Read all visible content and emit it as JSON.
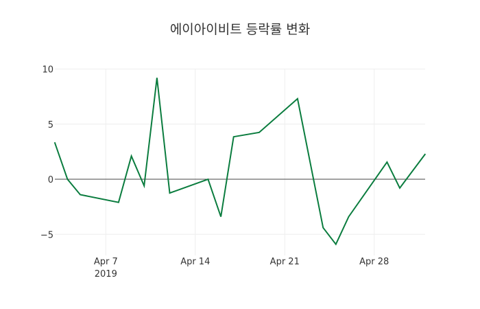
{
  "chart_data": {
    "type": "line",
    "title": "에이아이비트 등락률 변화",
    "xlabel": "",
    "ylabel": "",
    "x": [
      "2019-04-03",
      "2019-04-04",
      "2019-04-05",
      "2019-04-08",
      "2019-04-09",
      "2019-04-10",
      "2019-04-11",
      "2019-04-12",
      "2019-04-15",
      "2019-04-16",
      "2019-04-17",
      "2019-04-19",
      "2019-04-22",
      "2019-04-24",
      "2019-04-25",
      "2019-04-26",
      "2019-04-29",
      "2019-04-30",
      "2019-05-02"
    ],
    "series": [
      {
        "name": "등락률",
        "color": "#0a7c3e",
        "values": [
          3.35,
          0.0,
          -1.4,
          -2.1,
          2.1,
          -0.6,
          9.2,
          -1.25,
          0.0,
          -3.4,
          3.85,
          4.25,
          7.3,
          -4.4,
          -5.9,
          -3.4,
          1.55,
          -0.8,
          2.3
        ]
      }
    ],
    "ylim": [
      -7.0,
      10.3
    ],
    "yticks": [
      10,
      5,
      0,
      -5
    ],
    "ytick_labels": [
      "10",
      "5",
      "0",
      "−5"
    ],
    "xticks": [
      "2019-04-07",
      "2019-04-14",
      "2019-04-21",
      "2019-04-28"
    ],
    "xtick_labels": [
      "Apr 7",
      "Apr 14",
      "Apr 21",
      "Apr 28"
    ],
    "xtick_sublabel": "2019",
    "grid": true,
    "zeroline": true,
    "legend": "none"
  }
}
